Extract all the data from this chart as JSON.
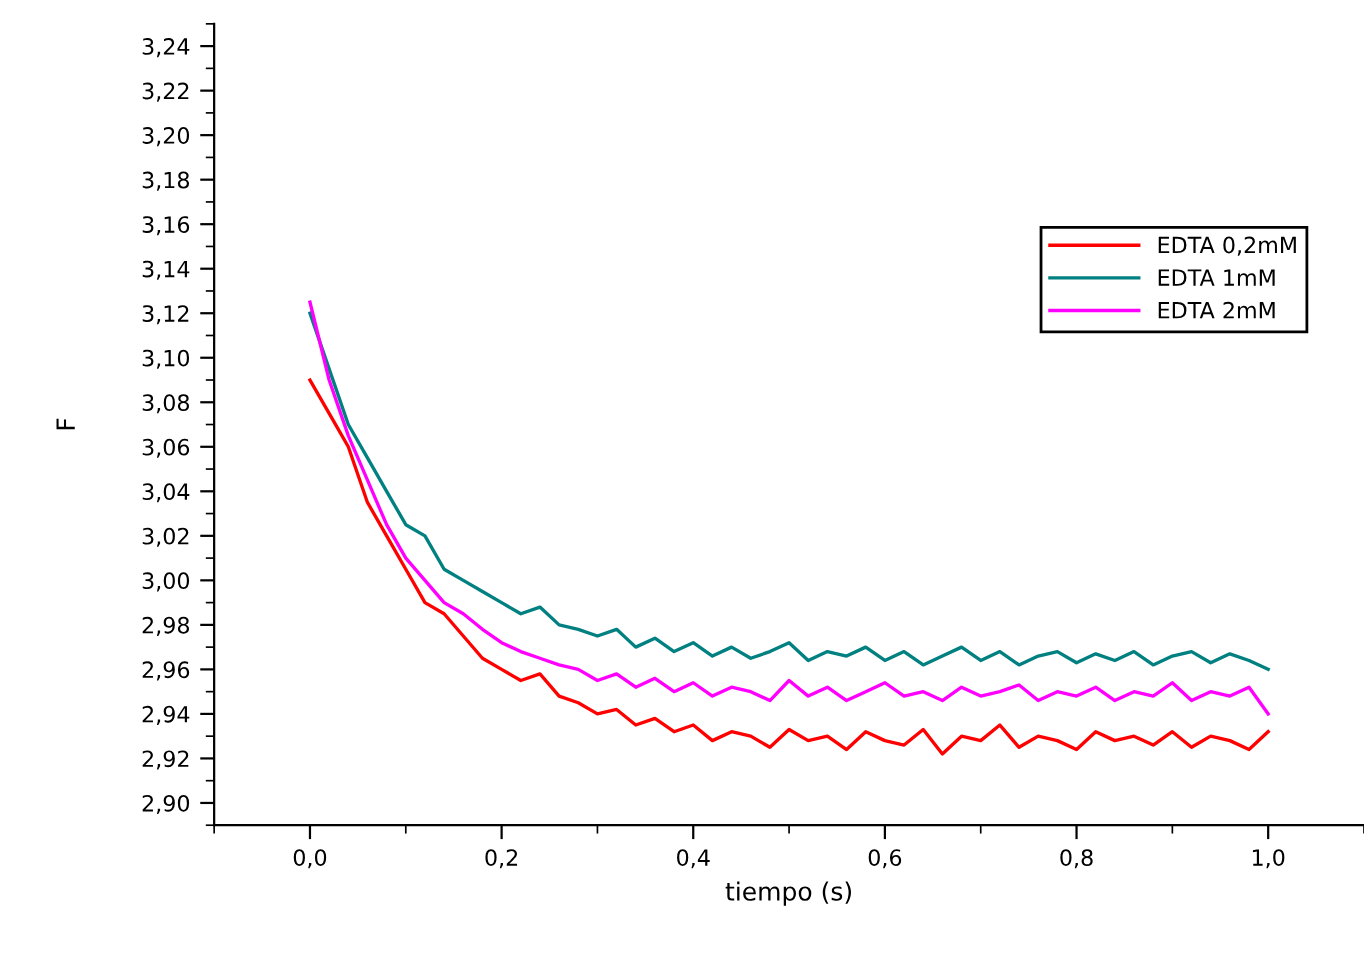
{
  "chart_data": {
    "type": "line",
    "xlabel": "tiempo (s)",
    "ylabel": "F",
    "x": [
      0,
      0.02,
      0.04,
      0.06,
      0.08,
      0.1,
      0.12,
      0.14,
      0.16,
      0.18,
      0.2,
      0.22,
      0.24,
      0.26,
      0.28,
      0.3,
      0.32,
      0.34,
      0.36,
      0.38,
      0.4,
      0.42,
      0.44,
      0.46,
      0.48,
      0.5,
      0.52,
      0.54,
      0.56,
      0.58,
      0.6,
      0.62,
      0.64,
      0.66,
      0.68,
      0.7,
      0.72,
      0.74,
      0.76,
      0.78,
      0.8,
      0.82,
      0.84,
      0.86,
      0.88,
      0.9,
      0.92,
      0.94,
      0.96,
      0.98,
      1.0
    ],
    "series": [
      {
        "name": "EDTA 0,2mM",
        "color": "#ff0000",
        "values": [
          3.09,
          3.075,
          3.06,
          3.035,
          3.02,
          3.005,
          2.99,
          2.985,
          2.975,
          2.965,
          2.96,
          2.955,
          2.958,
          2.948,
          2.945,
          2.94,
          2.942,
          2.935,
          2.938,
          2.932,
          2.935,
          2.928,
          2.932,
          2.93,
          2.925,
          2.933,
          2.928,
          2.93,
          2.924,
          2.932,
          2.928,
          2.926,
          2.933,
          2.922,
          2.93,
          2.928,
          2.935,
          2.925,
          2.93,
          2.928,
          2.924,
          2.932,
          2.928,
          2.93,
          2.926,
          2.932,
          2.925,
          2.93,
          2.928,
          2.924,
          2.932
        ]
      },
      {
        "name": "EDTA 1mM",
        "color": "#008080",
        "values": [
          3.12,
          3.095,
          3.07,
          3.055,
          3.04,
          3.025,
          3.02,
          3.005,
          3.0,
          2.995,
          2.99,
          2.985,
          2.988,
          2.98,
          2.978,
          2.975,
          2.978,
          2.97,
          2.974,
          2.968,
          2.972,
          2.966,
          2.97,
          2.965,
          2.968,
          2.972,
          2.964,
          2.968,
          2.966,
          2.97,
          2.964,
          2.968,
          2.962,
          2.966,
          2.97,
          2.964,
          2.968,
          2.962,
          2.966,
          2.968,
          2.963,
          2.967,
          2.964,
          2.968,
          2.962,
          2.966,
          2.968,
          2.963,
          2.967,
          2.964,
          2.96
        ]
      },
      {
        "name": "EDTA 2mM",
        "color": "#ff00ff",
        "values": [
          3.125,
          3.09,
          3.065,
          3.045,
          3.025,
          3.01,
          3.0,
          2.99,
          2.985,
          2.978,
          2.972,
          2.968,
          2.965,
          2.962,
          2.96,
          2.955,
          2.958,
          2.952,
          2.956,
          2.95,
          2.954,
          2.948,
          2.952,
          2.95,
          2.946,
          2.955,
          2.948,
          2.952,
          2.946,
          2.95,
          2.954,
          2.948,
          2.95,
          2.946,
          2.952,
          2.948,
          2.95,
          2.953,
          2.946,
          2.95,
          2.948,
          2.952,
          2.946,
          2.95,
          2.948,
          2.954,
          2.946,
          2.95,
          2.948,
          2.952,
          2.94
        ]
      }
    ],
    "xlim": [
      -0.1,
      1.1
    ],
    "ylim": [
      2.89,
      3.25
    ],
    "xticks": [
      {
        "value": 0,
        "label": "0,0"
      },
      {
        "value": 0.2,
        "label": "0,2"
      },
      {
        "value": 0.4,
        "label": "0,4"
      },
      {
        "value": 0.6,
        "label": "0,6"
      },
      {
        "value": 0.8,
        "label": "0,8"
      },
      {
        "value": 1.0,
        "label": "1,0"
      }
    ],
    "yticks": [
      {
        "value": 2.9,
        "label": "2,90"
      },
      {
        "value": 2.92,
        "label": "2,92"
      },
      {
        "value": 2.94,
        "label": "2,94"
      },
      {
        "value": 2.96,
        "label": "2,96"
      },
      {
        "value": 2.98,
        "label": "2,98"
      },
      {
        "value": 3.0,
        "label": "3,00"
      },
      {
        "value": 3.02,
        "label": "3,02"
      },
      {
        "value": 3.04,
        "label": "3,04"
      },
      {
        "value": 3.06,
        "label": "3,06"
      },
      {
        "value": 3.08,
        "label": "3,08"
      },
      {
        "value": 3.1,
        "label": "3,10"
      },
      {
        "value": 3.12,
        "label": "3,12"
      },
      {
        "value": 3.14,
        "label": "3,14"
      },
      {
        "value": 3.16,
        "label": "3,16"
      },
      {
        "value": 3.18,
        "label": "3,18"
      },
      {
        "value": 3.2,
        "label": "3,20"
      },
      {
        "value": 3.22,
        "label": "3,22"
      },
      {
        "value": 3.24,
        "label": "3,24"
      }
    ],
    "grid": false,
    "legend": "top right",
    "marker": "none",
    "line_style": "solid"
  }
}
